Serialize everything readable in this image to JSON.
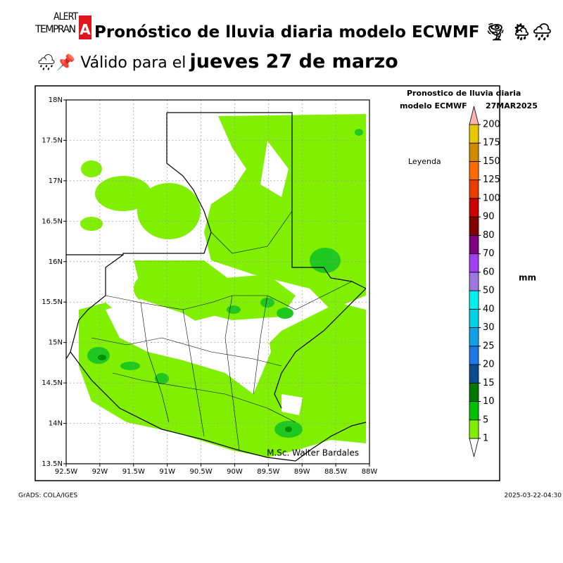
{
  "header": {
    "logo": {
      "line1": "ALERT",
      "line2": "TEMPRAN",
      "badge": "A"
    },
    "title": "Pronóstico de lluvia diaria modelo ECWMF 🌪 🌦🌧",
    "subtitle_prefix": "🌧📌 Válido para el",
    "subtitle_date": "jueves 27 de marzo"
  },
  "map": {
    "xlim": [
      -92.5,
      -88
    ],
    "ylim": [
      13.5,
      18
    ],
    "xticks": [
      {
        "value": -92.5,
        "label": "92.5W"
      },
      {
        "value": -92,
        "label": "92W"
      },
      {
        "value": -91.5,
        "label": "91.5W"
      },
      {
        "value": -91,
        "label": "91W"
      },
      {
        "value": -90.5,
        "label": "90.5W"
      },
      {
        "value": -90,
        "label": "90W"
      },
      {
        "value": -89.5,
        "label": "89.5W"
      },
      {
        "value": -89,
        "label": "89W"
      },
      {
        "value": -88.5,
        "label": "88.5W"
      },
      {
        "value": -88,
        "label": "88W"
      }
    ],
    "yticks": [
      {
        "value": 13.5,
        "label": "13.5N"
      },
      {
        "value": 14,
        "label": "14N"
      },
      {
        "value": 14.5,
        "label": "14.5N"
      },
      {
        "value": 15,
        "label": "15N"
      },
      {
        "value": 15.5,
        "label": "15.5N"
      },
      {
        "value": 16,
        "label": "16N"
      },
      {
        "value": 16.5,
        "label": "16.5N"
      },
      {
        "value": 17,
        "label": "17N"
      },
      {
        "value": 17.5,
        "label": "17.5N"
      },
      {
        "value": 18,
        "label": "18N"
      }
    ],
    "grid": true,
    "legend_title": [
      "Pronostico de lluvia diaria",
      "modelo ECMWF",
      "27MAR2025"
    ],
    "legend_label": "Leyenda",
    "unit": "mm",
    "credit": "M.Sc. Walter Bardales"
  },
  "colorbar": {
    "levels": [
      1,
      5,
      10,
      15,
      20,
      25,
      30,
      40,
      50,
      60,
      70,
      80,
      90,
      100,
      125,
      150,
      175,
      200
    ],
    "colors": [
      "#ffffff",
      "#80f000",
      "#00c000",
      "#007800",
      "#0a4b8c",
      "#1e78e6",
      "#10a0e6",
      "#00d2e6",
      "#00f0f0",
      "#9a78e0",
      "#a040f0",
      "#800080",
      "#800000",
      "#c80000",
      "#e83c00",
      "#ff6a00",
      "#d08a00",
      "#e8c800",
      "#ffff00",
      "#ffb4b4"
    ]
  },
  "footer": {
    "left": "GrADS: COLA/IGES",
    "right": "2025-03-22-04:30"
  }
}
